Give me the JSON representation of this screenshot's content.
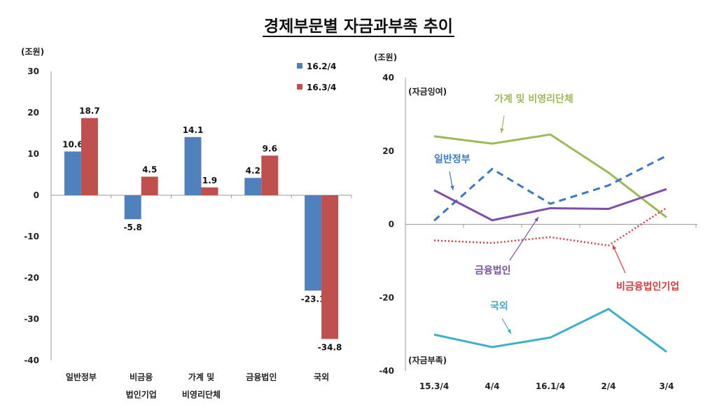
{
  "title": "경제부문별 자금과부족 추이",
  "chart_data": [
    {
      "type": "bar",
      "ylabel": "(조원)",
      "ylim": [
        -40,
        30
      ],
      "yticks": [
        30,
        20,
        10,
        0,
        -10,
        -20,
        -30,
        -40
      ],
      "categories": [
        [
          "일반정부"
        ],
        [
          "비금융",
          "법인기업"
        ],
        [
          "가계 및",
          "비영리단체"
        ],
        [
          "금융법인"
        ],
        [
          "국외"
        ]
      ],
      "series": [
        {
          "name": "16.2/4",
          "color": "#4f81bd",
          "values": [
            10.6,
            -5.8,
            14.1,
            4.2,
            -23.1
          ],
          "labels": [
            "10.6",
            "-5.8",
            "14.1",
            "4.2",
            "-23.1"
          ]
        },
        {
          "name": "16.3/4",
          "color": "#c0504d",
          "values": [
            18.7,
            4.5,
            1.9,
            9.6,
            -34.8
          ],
          "labels": [
            "18.7",
            "4.5",
            "1.9",
            "9.6",
            "-34.8"
          ]
        }
      ],
      "legend": "top-right",
      "grid": false
    },
    {
      "type": "line",
      "ylabel": "(조원)",
      "ylim": [
        -40,
        40
      ],
      "yticks": [
        40,
        20,
        0,
        -20,
        -40
      ],
      "categories": [
        "15.3/4",
        "4/4",
        "16.1/4",
        "2/4",
        "3/4"
      ],
      "annotations": {
        "surplus": "(자금잉여)",
        "deficit": "(자금부족)"
      },
      "series": [
        {
          "name": "가계 및 비영리단체",
          "color": "#9bbb59",
          "style": "solid",
          "values": [
            24.0,
            22.0,
            24.5,
            14.1,
            1.9
          ]
        },
        {
          "name": "일반정부",
          "color": "#3a78c3",
          "style": "dashed",
          "values": [
            1.0,
            15.1,
            5.6,
            10.6,
            18.7
          ]
        },
        {
          "name": "금융법인",
          "color": "#7f4fa8",
          "style": "solid",
          "values": [
            9.3,
            1.1,
            4.4,
            4.2,
            9.6
          ]
        },
        {
          "name": "비금융법인기업",
          "color": "#e0393e",
          "style": "dotted",
          "values": [
            -4.4,
            -5.1,
            -3.5,
            -5.8,
            4.5
          ]
        },
        {
          "name": "국외",
          "color": "#3bb0c9",
          "style": "solid",
          "values": [
            -30.1,
            -33.5,
            -30.9,
            -23.1,
            -34.8
          ]
        }
      ],
      "grid": false
    }
  ]
}
